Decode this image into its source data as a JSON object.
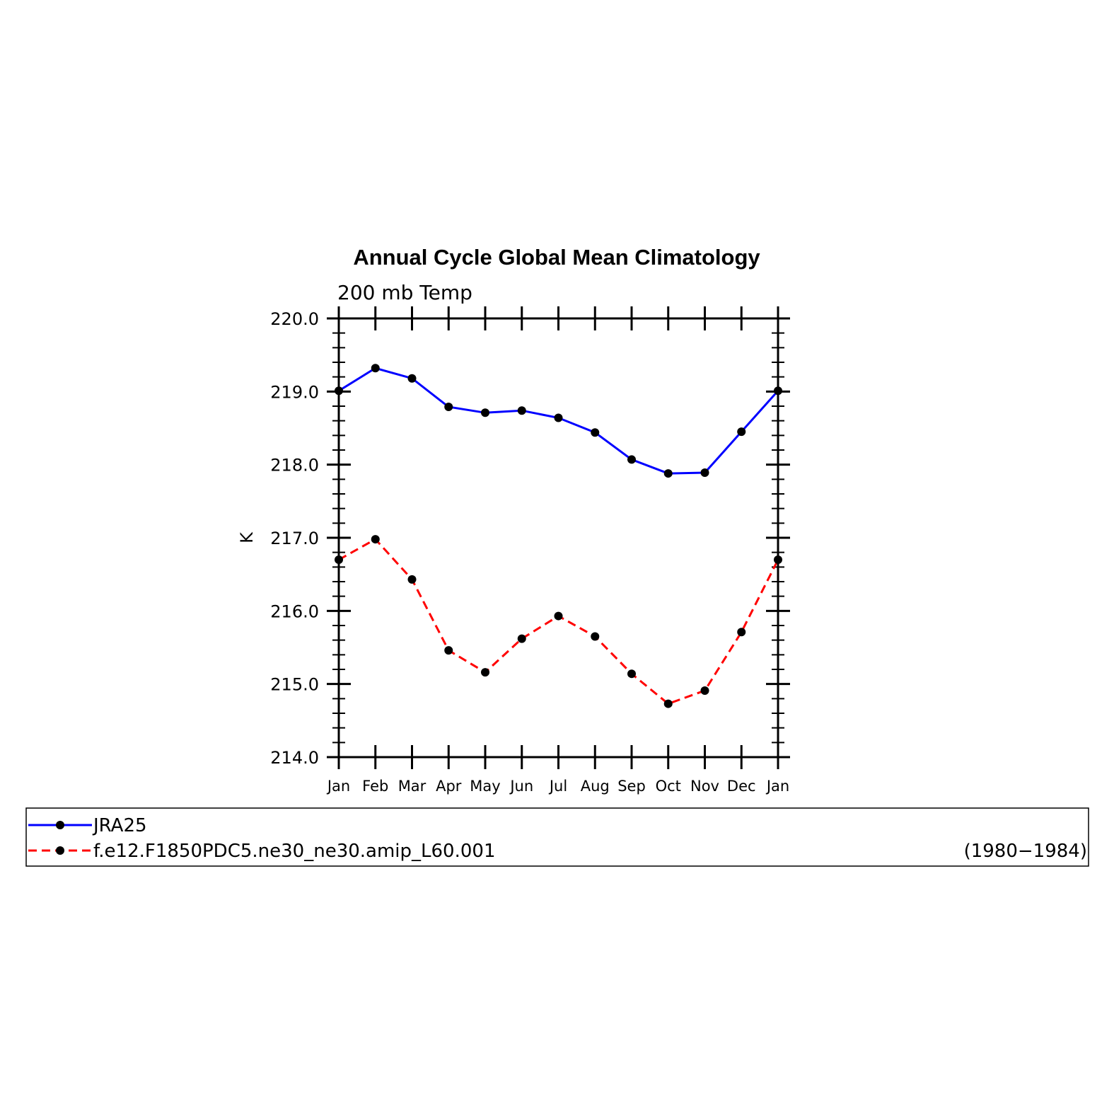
{
  "chart_data": {
    "type": "line",
    "title": "Annual Cycle Global Mean Climatology",
    "subtitle": "200 mb Temp",
    "xlabel": "",
    "ylabel": "K",
    "categories": [
      "Jan",
      "Feb",
      "Mar",
      "Apr",
      "May",
      "Jun",
      "Jul",
      "Aug",
      "Sep",
      "Oct",
      "Nov",
      "Dec",
      "Jan"
    ],
    "ylim": [
      214.0,
      220.0
    ],
    "yticks": [
      "214.0",
      "215.0",
      "216.0",
      "217.0",
      "218.0",
      "219.0",
      "220.0"
    ],
    "grid": false,
    "legend_placement": "below",
    "series": [
      {
        "name": "JRA25",
        "color": "#0000ff",
        "line_style": "solid",
        "marker": "filled-circle",
        "values": [
          219.01,
          219.32,
          219.18,
          218.79,
          218.71,
          218.74,
          218.64,
          218.44,
          218.07,
          217.88,
          217.89,
          218.45,
          219.01
        ]
      },
      {
        "name": "f.e12.F1850PDC5.ne30_ne30.amip_L60.001",
        "color": "#ff0000",
        "line_style": "dashed",
        "marker": "filled-circle",
        "values": [
          216.7,
          216.98,
          216.43,
          215.46,
          215.16,
          215.62,
          215.93,
          215.65,
          215.14,
          214.73,
          214.91,
          215.71,
          216.7
        ]
      }
    ],
    "legend_note": "(1980−1984)"
  }
}
